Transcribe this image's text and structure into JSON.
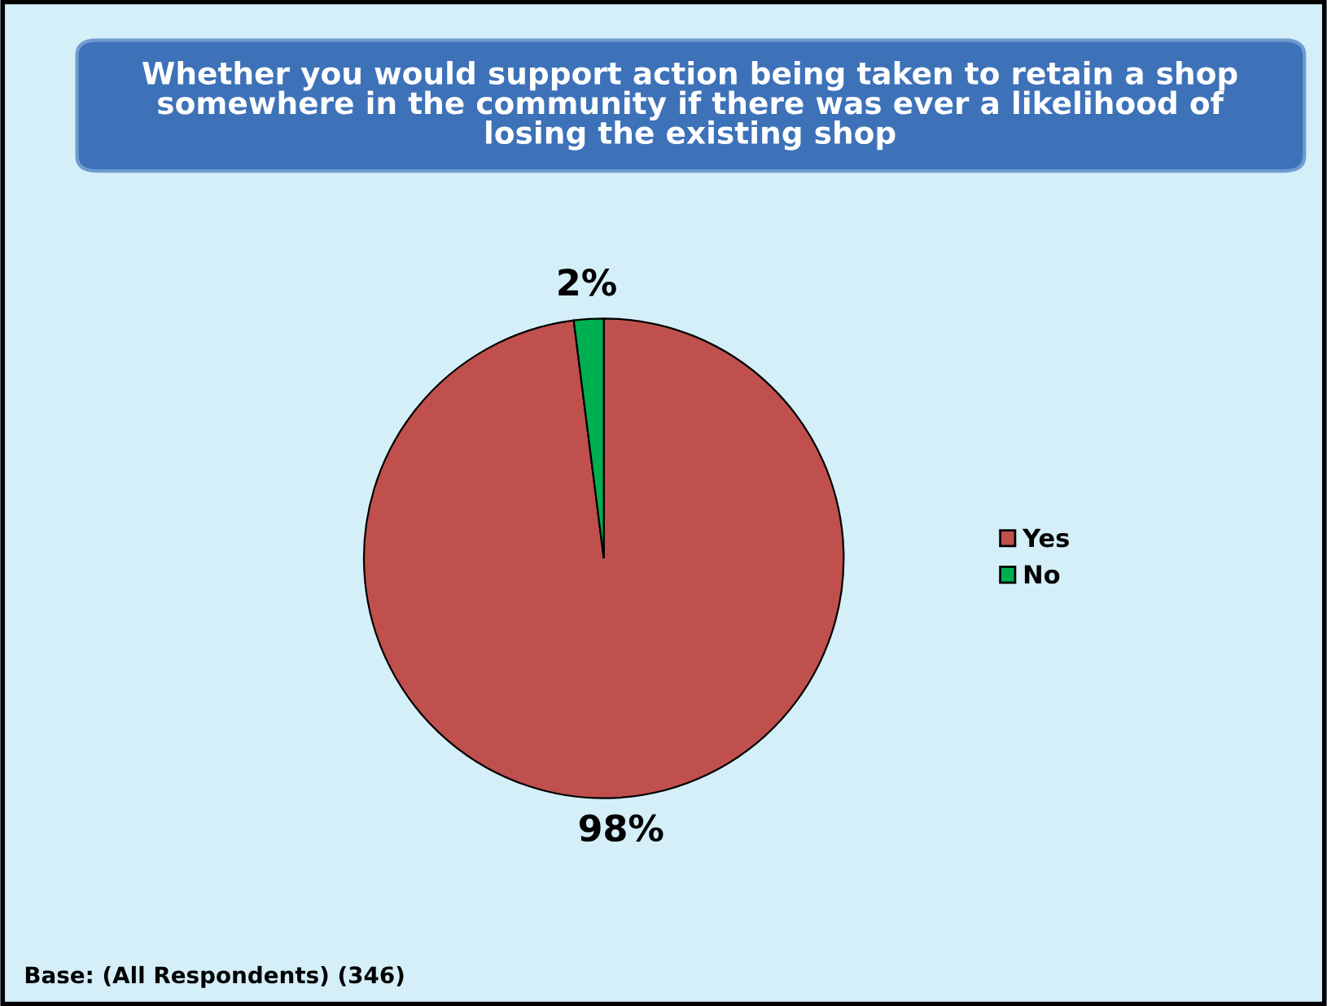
{
  "chart_data": {
    "type": "pie",
    "title": "Whether you would support action being taken to retain a shop somewhere in the community if there was ever a likelihood of losing the existing shop",
    "categories": [
      "Yes",
      "No"
    ],
    "values": [
      98,
      2
    ],
    "colors": [
      "#c0504d",
      "#00b050"
    ],
    "value_labels": [
      "98%",
      "2%"
    ],
    "legend": "right",
    "annotations": [
      "Base: (All Respondents) (346)"
    ]
  }
}
